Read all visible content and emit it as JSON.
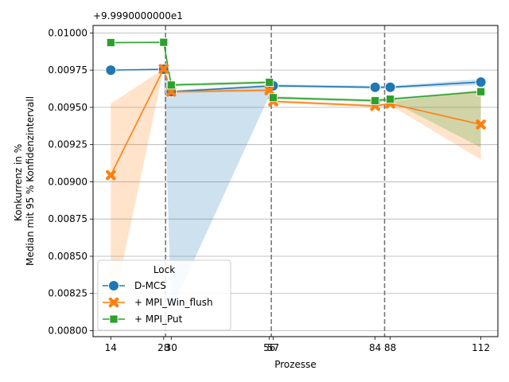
{
  "chart_data": {
    "type": "line",
    "offset_label": "+9.9990000000e1",
    "xlabel": "Prozesse",
    "ylabel_lines": [
      "Konkurrenz in %",
      "Median mit 95 % Konfidenzintervall"
    ],
    "x_ticks": [
      14,
      28,
      30,
      56,
      57,
      84,
      88,
      112
    ],
    "x_tick_labels": [
      "14",
      "28",
      "30",
      "56",
      "57",
      "84",
      "88",
      "112"
    ],
    "y_ticks": [
      0.008,
      0.00825,
      0.0085,
      0.00875,
      0.009,
      0.00925,
      0.0095,
      0.00975,
      0.01
    ],
    "y_tick_labels": [
      "0.00800",
      "0.00825",
      "0.00850",
      "0.00875",
      "0.00900",
      "0.00925",
      "0.00950",
      "0.00975",
      "0.01000"
    ],
    "xlim": [
      9.3,
      116.5
    ],
    "ylim": [
      0.00796,
      0.01005
    ],
    "grid": "horizontal",
    "vlines": [
      28.5,
      56.5,
      86.5
    ],
    "legend": {
      "title": "Lock",
      "placement": "lower-left"
    },
    "series": [
      {
        "name": "D-MCS",
        "color": "#1f77b4",
        "marker": "circle",
        "x": [
          14,
          28,
          30,
          57,
          84,
          88,
          112
        ],
        "y": [
          0.00975,
          0.009756,
          0.009605,
          0.009645,
          0.009635,
          0.009635,
          0.00967
        ],
        "ci_low": [
          0.00975,
          0.009756,
          0.00814,
          0.009635,
          0.009625,
          0.009625,
          0.00965
        ],
        "ci_high": [
          0.00975,
          0.009756,
          0.009615,
          0.009655,
          0.009645,
          0.009645,
          0.00969
        ]
      },
      {
        "name": "+ MPI_Win_flush",
        "color": "#ff7f0e",
        "marker": "x",
        "x": [
          14,
          28,
          30,
          56,
          57,
          84,
          88,
          112
        ],
        "y": [
          0.009045,
          0.009758,
          0.009605,
          0.009615,
          0.00954,
          0.00951,
          0.009525,
          0.009385
        ],
        "ci_low": [
          0.00808,
          0.009758,
          0.009595,
          0.009605,
          0.00953,
          0.0095,
          0.009515,
          0.00915
        ],
        "ci_high": [
          0.009525,
          0.009758,
          0.009615,
          0.009625,
          0.00955,
          0.00952,
          0.009535,
          0.00962
        ]
      },
      {
        "name": "+ MPI_Put",
        "color": "#2ca02c",
        "marker": "square",
        "x": [
          14,
          28,
          30,
          56,
          57,
          84,
          88,
          112
        ],
        "y": [
          0.009935,
          0.009937,
          0.00965,
          0.009668,
          0.009565,
          0.009545,
          0.009555,
          0.009605
        ],
        "ci_low": [
          0.009935,
          0.009937,
          0.00964,
          0.009658,
          0.009555,
          0.009535,
          0.009545,
          0.00923
        ],
        "ci_high": [
          0.009935,
          0.009937,
          0.00966,
          0.009678,
          0.009575,
          0.009555,
          0.009565,
          0.009615
        ]
      }
    ]
  }
}
